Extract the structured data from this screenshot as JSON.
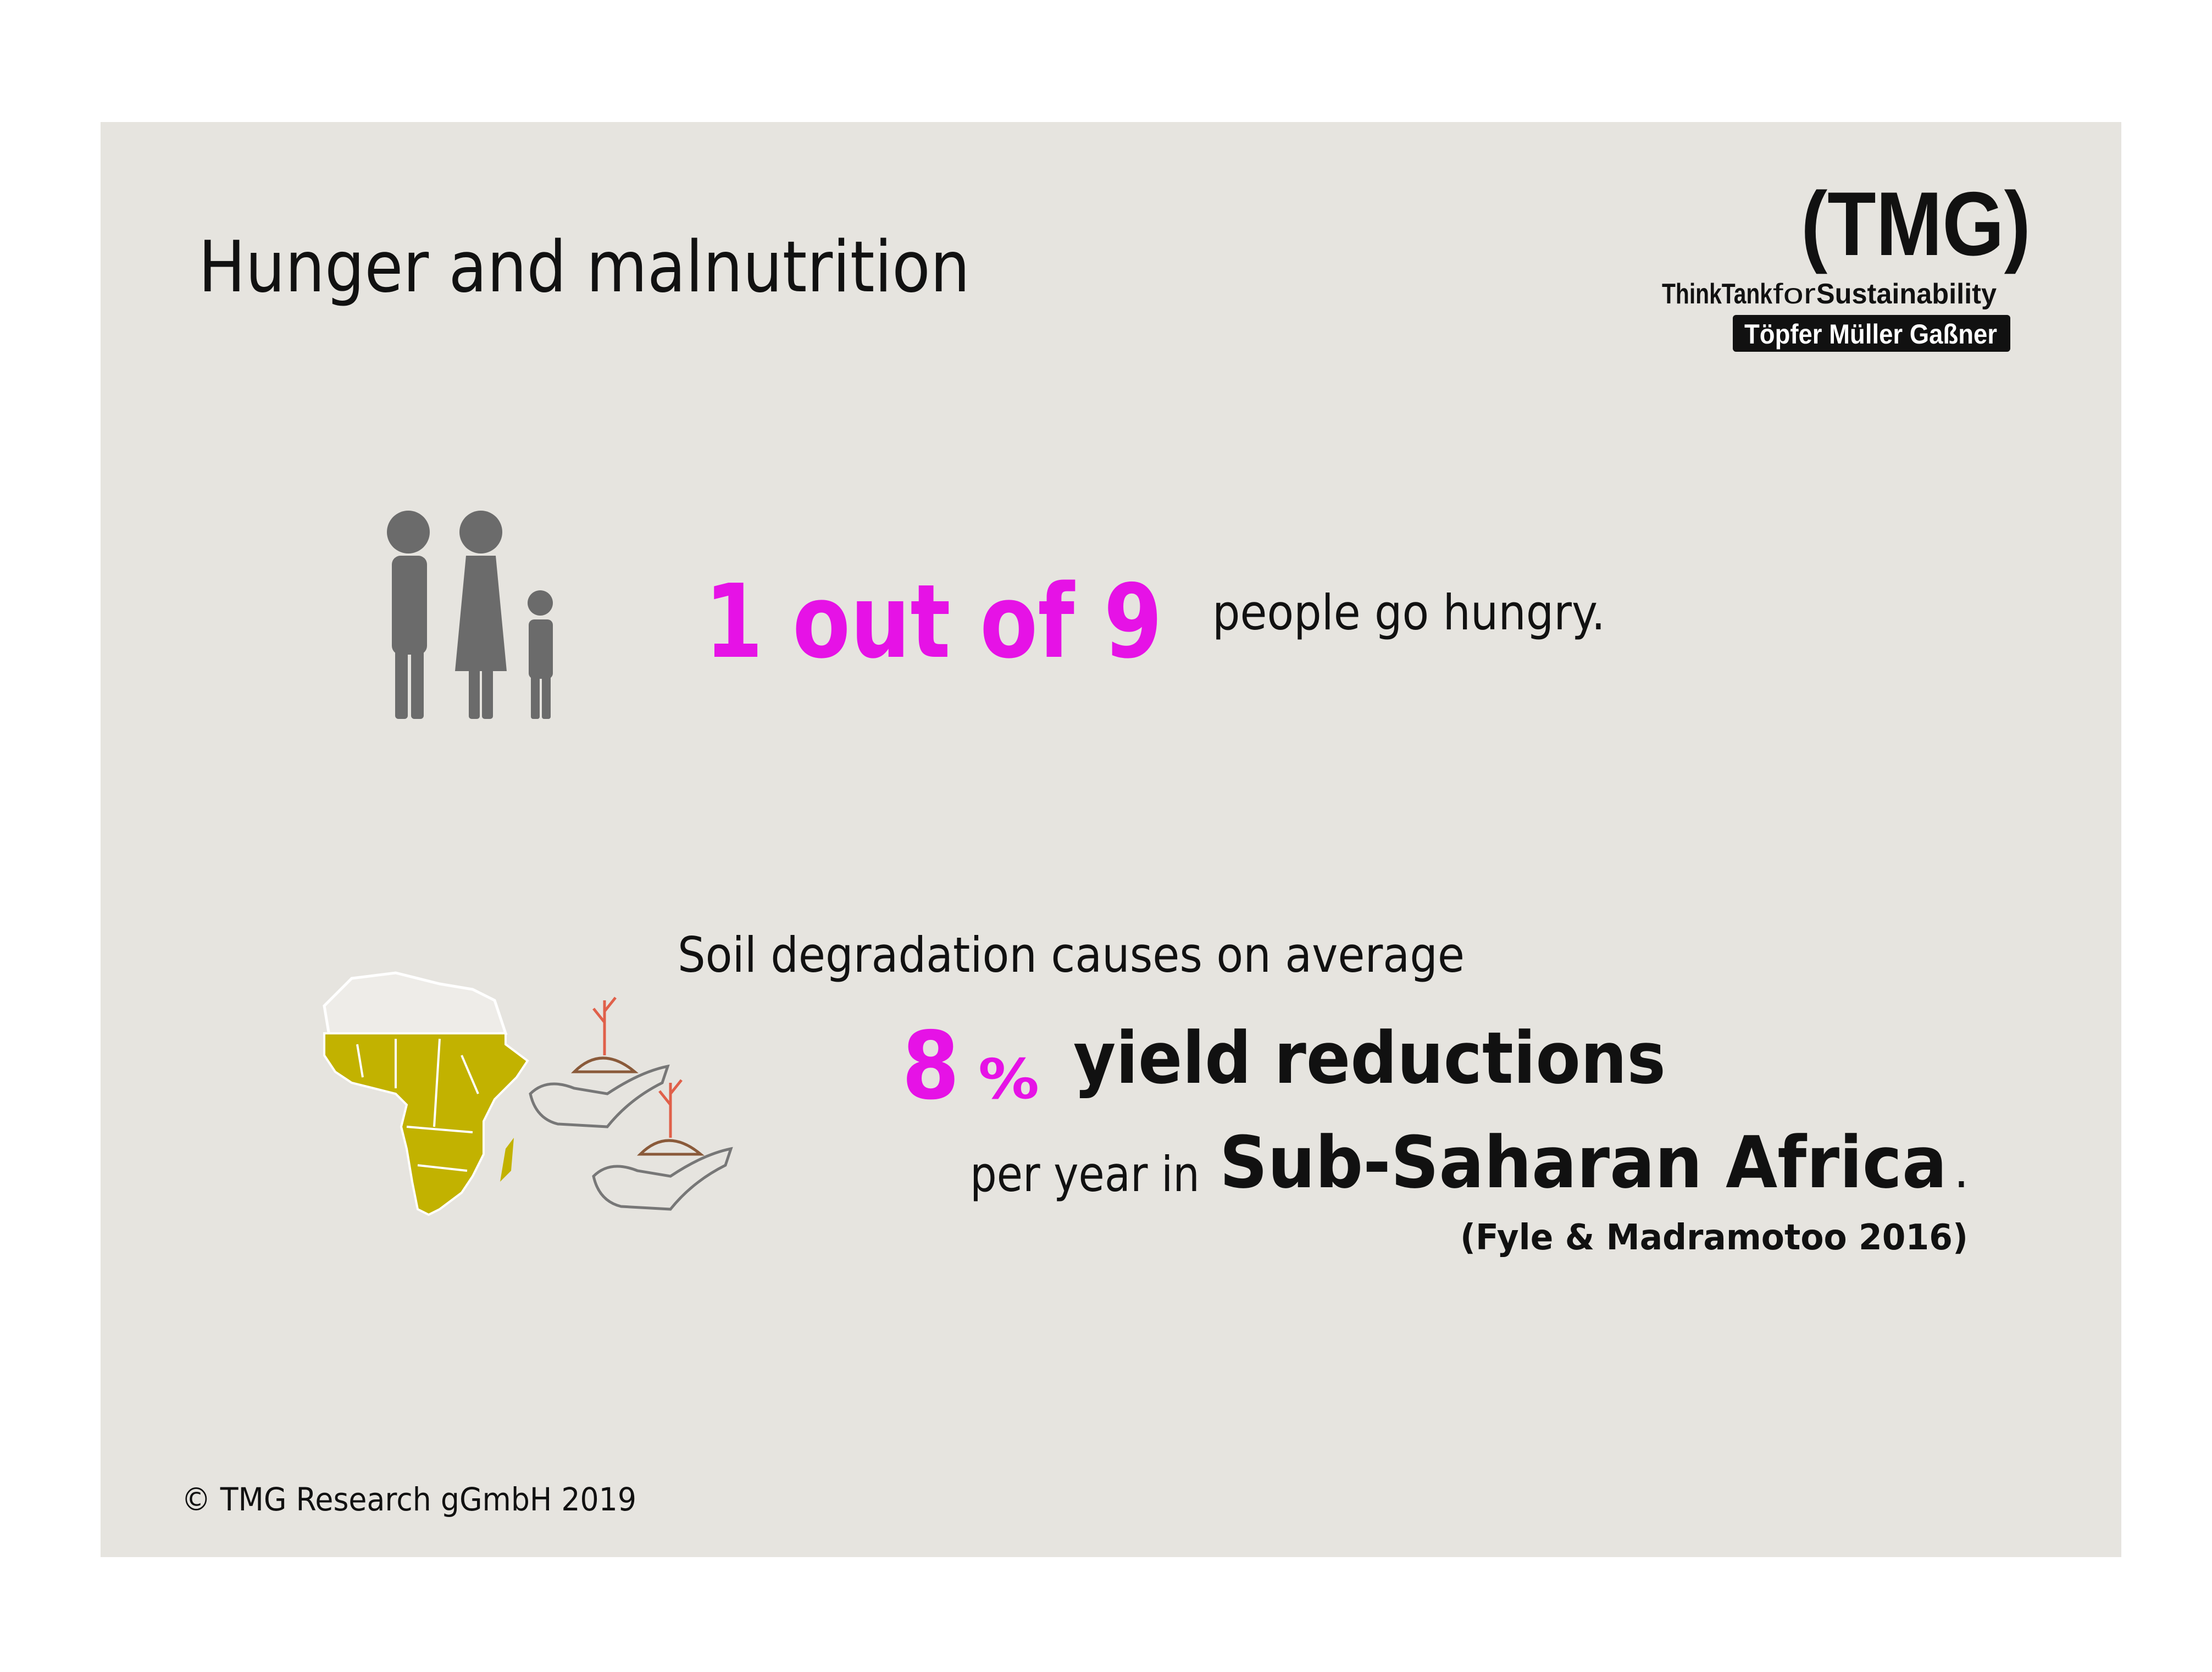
{
  "header": {
    "title": "Hunger and malnutrition"
  },
  "logo": {
    "name": "(TMG)",
    "tagline": [
      "ThinkTank",
      "for",
      "Sustainability"
    ],
    "founders": "Töpfer Müller Gaßner"
  },
  "hunger": {
    "highlight": "1 out of 9",
    "text": "people go hungry."
  },
  "soil": {
    "intro": "Soil degradation  causes on average",
    "number": "8",
    "unit": "%",
    "effect": "yield reductions",
    "region_prefix": "per year in",
    "region": "Sub-Saharan Africa",
    "period": ".",
    "source": "(Fyle & Madramotoo 2016)"
  },
  "footer": {
    "copyright": "© TMG Research gGmbH 2019"
  }
}
